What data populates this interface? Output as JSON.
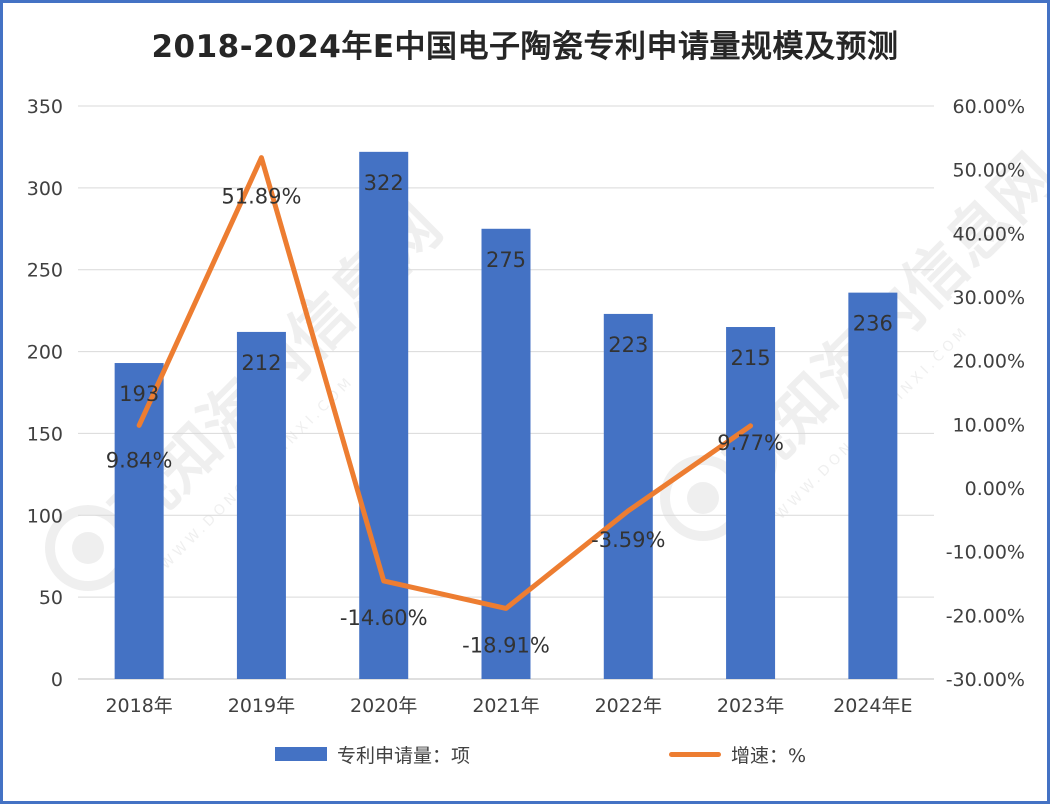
{
  "title": "2018-2024年E中国电子陶瓷专利申请量规模及预测",
  "colors": {
    "bar": "#4472c4",
    "line": "#ed7d31",
    "frame": "#4472c4",
    "grid": "#d9d9d9",
    "text": "#404040"
  },
  "legend": {
    "bar_label": "专利申请量：项",
    "line_label": "增速：%"
  },
  "watermark": {
    "text": "观知海内信息网",
    "sub": "WWW.DONGHAIXINXI.COM"
  },
  "chart_data": {
    "type": "bar",
    "categories": [
      "2018年",
      "2019年",
      "2020年",
      "2021年",
      "2022年",
      "2023年",
      "2024年E"
    ],
    "series": [
      {
        "name": "专利申请量：项",
        "type": "bar",
        "axis": "left",
        "values": [
          193,
          212,
          322,
          275,
          223,
          215,
          236
        ],
        "labels": [
          "193",
          "212",
          "322",
          "275",
          "223",
          "215",
          "236"
        ]
      },
      {
        "name": "增速：%",
        "type": "line",
        "axis": "right",
        "values": [
          9.84,
          51.89,
          -14.6,
          -18.91,
          -3.59,
          9.77,
          null
        ],
        "labels": [
          "9.84%",
          "51.89%",
          "-14.60%",
          "-18.91%",
          "-3.59%",
          "9.77%",
          ""
        ]
      }
    ],
    "y_left": {
      "min": 0,
      "max": 350,
      "step": 50,
      "ticks": [
        "0",
        "50",
        "100",
        "150",
        "200",
        "250",
        "300",
        "350"
      ]
    },
    "y_right": {
      "min": -30,
      "max": 60,
      "step": 10,
      "ticks": [
        "-30.00%",
        "-20.00%",
        "-10.00%",
        "0.00%",
        "10.00%",
        "20.00%",
        "30.00%",
        "40.00%",
        "50.00%",
        "60.00%"
      ]
    },
    "grid": true,
    "legend_position": "bottom"
  }
}
